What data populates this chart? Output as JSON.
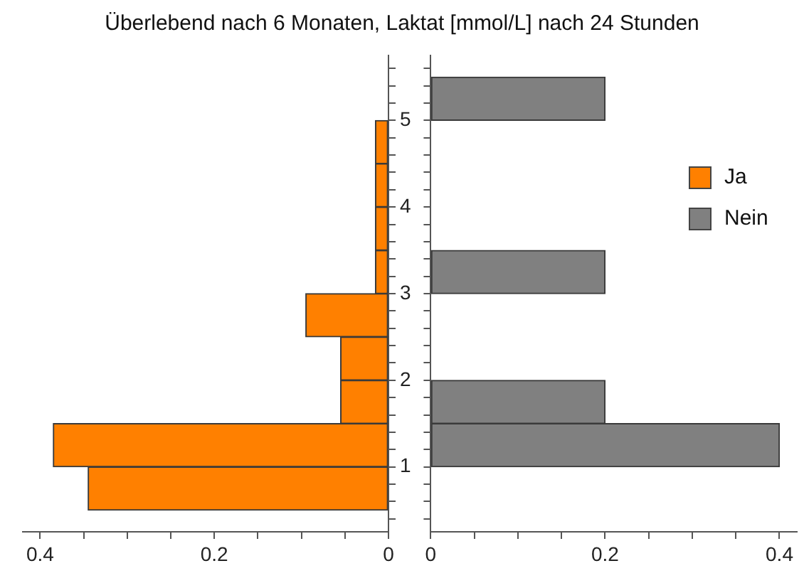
{
  "chart_data": [
    {
      "type": "histogram",
      "orientation": "horizontal",
      "title": "Überlebend nach 6 Monaten, Laktat [mmol/L] nach 24 Stunden",
      "bins": [
        0.5,
        1,
        1.5,
        2,
        2.5,
        3,
        3.5,
        4,
        4.5,
        5,
        5.5
      ],
      "series": [
        {
          "name": "Ja",
          "color": "#ff8000",
          "values": [
            0.345,
            0.385,
            0.055,
            0.055,
            0.095,
            0.015,
            0.015,
            0.015,
            0.015,
            0
          ]
        }
      ],
      "xlim": [
        0.42,
        0
      ],
      "xticks": [
        0.4,
        {
          "value": 0.35,
          "label": null
        },
        {
          "value": 0.3,
          "label": null
        },
        {
          "value": 0.25,
          "label": null
        },
        0.2,
        {
          "value": 0.15,
          "label": null
        },
        {
          "value": 0.1,
          "label": null
        },
        {
          "value": 0.05,
          "label": null
        },
        0
      ],
      "ylim": [
        0.25,
        5.75
      ],
      "yticks": [
        {
          "value": 0.4,
          "label": null
        },
        {
          "value": 0.6,
          "label": null
        },
        {
          "value": 0.8,
          "label": null
        },
        1,
        {
          "value": 1.2,
          "label": null
        },
        {
          "value": 1.4,
          "label": null
        },
        {
          "value": 1.6,
          "label": null
        },
        {
          "value": 1.8,
          "label": null
        },
        2,
        {
          "value": 2.2,
          "label": null
        },
        {
          "value": 2.4,
          "label": null
        },
        {
          "value": 2.6,
          "label": null
        },
        {
          "value": 2.8,
          "label": null
        },
        3,
        {
          "value": 3.2,
          "label": null
        },
        {
          "value": 3.4,
          "label": null
        },
        {
          "value": 3.6,
          "label": null
        },
        {
          "value": 3.8,
          "label": null
        },
        4,
        {
          "value": 4.2,
          "label": null
        },
        {
          "value": 4.4,
          "label": null
        },
        {
          "value": 4.6,
          "label": null
        },
        {
          "value": 4.8,
          "label": null
        },
        5,
        {
          "value": 5.2,
          "label": null
        },
        {
          "value": 5.4,
          "label": null
        },
        {
          "value": 5.6,
          "label": null
        }
      ],
      "legend": "right"
    },
    {
      "type": "histogram",
      "orientation": "horizontal",
      "bins": [
        0.5,
        1,
        1.5,
        2,
        2.5,
        3,
        3.5,
        4,
        4.5,
        5,
        5.5
      ],
      "series": [
        {
          "name": "Nein",
          "color": "#808080",
          "values": [
            0,
            0.4,
            0.2,
            0,
            0,
            0.2,
            0,
            0,
            0,
            0.2
          ]
        }
      ],
      "xlim": [
        0,
        0.42
      ],
      "xticks": [
        0,
        {
          "value": 0.05,
          "label": null
        },
        {
          "value": 0.1,
          "label": null
        },
        {
          "value": 0.15,
          "label": null
        },
        0.2,
        {
          "value": 0.25,
          "label": null
        },
        {
          "value": 0.3,
          "label": null
        },
        {
          "value": 0.35,
          "label": null
        },
        0.4
      ],
      "ylim": [
        0.25,
        5.75
      ],
      "yticks": [
        {
          "value": 0.4,
          "label": null
        },
        {
          "value": 0.6,
          "label": null
        },
        {
          "value": 0.8,
          "label": null
        },
        1,
        {
          "value": 1.2,
          "label": null
        },
        {
          "value": 1.4,
          "label": null
        },
        {
          "value": 1.6,
          "label": null
        },
        {
          "value": 1.8,
          "label": null
        },
        2,
        {
          "value": 2.2,
          "label": null
        },
        {
          "value": 2.4,
          "label": null
        },
        {
          "value": 2.6,
          "label": null
        },
        {
          "value": 2.8,
          "label": null
        },
        3,
        {
          "value": 3.2,
          "label": null
        },
        {
          "value": 3.4,
          "label": null
        },
        {
          "value": 3.6,
          "label": null
        },
        {
          "value": 3.8,
          "label": null
        },
        4,
        {
          "value": 4.2,
          "label": null
        },
        {
          "value": 4.4,
          "label": null
        },
        {
          "value": 4.6,
          "label": null
        },
        {
          "value": 4.8,
          "label": null
        },
        5,
        {
          "value": 5.2,
          "label": null
        },
        {
          "value": 5.4,
          "label": null
        },
        {
          "value": 5.6,
          "label": null
        }
      ],
      "tick_labels": "x",
      "legend": "right"
    }
  ]
}
